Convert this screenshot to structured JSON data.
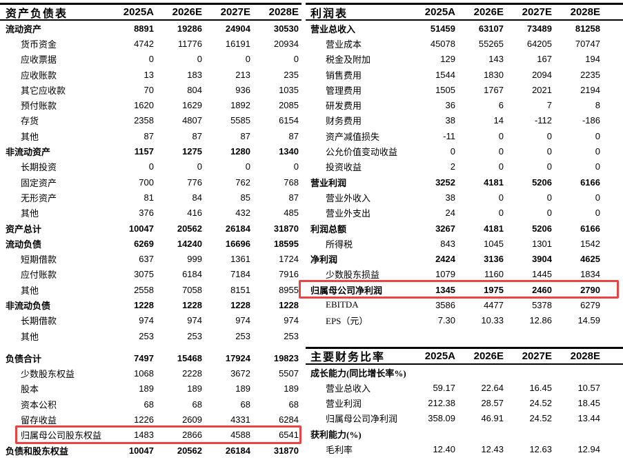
{
  "highlight_color": "#ea4343",
  "columns": [
    "2025A",
    "2026E",
    "2027E",
    "2028E"
  ],
  "balance_sheet": {
    "title": "资产负债表",
    "rows": [
      {
        "label": "流动资产",
        "style": "bold",
        "values": [
          "8891",
          "19286",
          "24904",
          "30530"
        ]
      },
      {
        "label": "货币资金",
        "style": "indent",
        "values": [
          "4742",
          "11776",
          "16191",
          "20934"
        ]
      },
      {
        "label": "应收票据",
        "style": "indent",
        "values": [
          "0",
          "0",
          "0",
          "0"
        ]
      },
      {
        "label": "应收账款",
        "style": "indent",
        "values": [
          "13",
          "183",
          "213",
          "235"
        ]
      },
      {
        "label": "其它应收款",
        "style": "indent",
        "values": [
          "70",
          "804",
          "936",
          "1035"
        ]
      },
      {
        "label": "预付账款",
        "style": "indent",
        "values": [
          "1620",
          "1629",
          "1892",
          "2085"
        ]
      },
      {
        "label": "存货",
        "style": "indent",
        "values": [
          "2358",
          "4807",
          "5585",
          "6154"
        ]
      },
      {
        "label": "其他",
        "style": "indent",
        "values": [
          "87",
          "87",
          "87",
          "87"
        ]
      },
      {
        "label": "非流动资产",
        "style": "bold",
        "values": [
          "1157",
          "1275",
          "1280",
          "1340"
        ]
      },
      {
        "label": "长期投资",
        "style": "indent",
        "values": [
          "0",
          "0",
          "0",
          "0"
        ]
      },
      {
        "label": "固定资产",
        "style": "indent",
        "values": [
          "700",
          "776",
          "762",
          "768"
        ]
      },
      {
        "label": "无形资产",
        "style": "indent",
        "values": [
          "81",
          "84",
          "85",
          "87"
        ]
      },
      {
        "label": "其他",
        "style": "indent",
        "values": [
          "376",
          "416",
          "432",
          "485"
        ]
      },
      {
        "label": "资产总计",
        "style": "bold",
        "values": [
          "10047",
          "20562",
          "26184",
          "31870"
        ]
      },
      {
        "label": "流动负债",
        "style": "bold",
        "values": [
          "6269",
          "14240",
          "16696",
          "18595"
        ]
      },
      {
        "label": "短期借款",
        "style": "indent",
        "values": [
          "637",
          "999",
          "1361",
          "1724"
        ]
      },
      {
        "label": "应付账款",
        "style": "indent",
        "values": [
          "3075",
          "6184",
          "7184",
          "7916"
        ]
      },
      {
        "label": "其他",
        "style": "indent",
        "values": [
          "2558",
          "7058",
          "8151",
          "8955"
        ]
      },
      {
        "label": "非流动负债",
        "style": "bold",
        "values": [
          "1228",
          "1228",
          "1228",
          "1228"
        ]
      },
      {
        "label": "长期借款",
        "style": "indent",
        "values": [
          "974",
          "974",
          "974",
          "974"
        ]
      },
      {
        "label": "其他",
        "style": "indent",
        "values": [
          "253",
          "253",
          "253",
          "253"
        ]
      },
      {
        "label": "负债合计",
        "style": "bold",
        "gap": true,
        "values": [
          "7497",
          "15468",
          "17924",
          "19823"
        ]
      },
      {
        "label": "少数股东权益",
        "style": "indent",
        "values": [
          "1068",
          "2228",
          "3672",
          "5507"
        ]
      },
      {
        "label": "股本",
        "style": "indent",
        "values": [
          "189",
          "189",
          "189",
          "189"
        ]
      },
      {
        "label": "资本公积",
        "style": "indent",
        "values": [
          "68",
          "68",
          "68",
          "68"
        ]
      },
      {
        "label": "留存收益",
        "style": "indent",
        "values": [
          "1226",
          "2609",
          "4331",
          "6284"
        ]
      },
      {
        "label": "归属母公司股东权益",
        "style": "indent",
        "highlight": true,
        "values": [
          "1483",
          "2866",
          "4588",
          "6541"
        ]
      },
      {
        "label": "负债和股东权益",
        "style": "bold",
        "values": [
          "10047",
          "20562",
          "26184",
          "31870"
        ]
      }
    ]
  },
  "income_statement": {
    "title": "利润表",
    "rows": [
      {
        "label": "营业总收入",
        "style": "bold",
        "values": [
          "51459",
          "63107",
          "73489",
          "81258"
        ]
      },
      {
        "label": "营业成本",
        "style": "indent",
        "values": [
          "45078",
          "55265",
          "64205",
          "70747"
        ]
      },
      {
        "label": "税金及附加",
        "style": "indent",
        "values": [
          "129",
          "143",
          "167",
          "194"
        ]
      },
      {
        "label": "销售费用",
        "style": "indent",
        "values": [
          "1544",
          "1830",
          "2094",
          "2235"
        ]
      },
      {
        "label": "管理费用",
        "style": "indent",
        "values": [
          "1505",
          "1767",
          "2021",
          "2194"
        ]
      },
      {
        "label": "研发费用",
        "style": "indent",
        "values": [
          "36",
          "6",
          "7",
          "8"
        ]
      },
      {
        "label": "财务费用",
        "style": "indent",
        "values": [
          "38",
          "14",
          "-112",
          "-186"
        ]
      },
      {
        "label": "资产减值损失",
        "style": "indent",
        "values": [
          "-11",
          "0",
          "0",
          "0"
        ]
      },
      {
        "label": "公允价值变动收益",
        "style": "indent",
        "values": [
          "0",
          "0",
          "0",
          "0"
        ]
      },
      {
        "label": "投资收益",
        "style": "indent",
        "values": [
          "2",
          "0",
          "0",
          "0"
        ]
      },
      {
        "label": "营业利润",
        "style": "bold",
        "values": [
          "3252",
          "4181",
          "5206",
          "6166"
        ]
      },
      {
        "label": "营业外收入",
        "style": "indent",
        "values": [
          "38",
          "0",
          "0",
          "0"
        ]
      },
      {
        "label": "营业外支出",
        "style": "indent",
        "values": [
          "24",
          "0",
          "0",
          "0"
        ]
      },
      {
        "label": "利润总额",
        "style": "bold",
        "values": [
          "3267",
          "4181",
          "5206",
          "6166"
        ]
      },
      {
        "label": "所得税",
        "style": "indent",
        "values": [
          "843",
          "1045",
          "1301",
          "1542"
        ]
      },
      {
        "label": "净利润",
        "style": "bold",
        "values": [
          "2424",
          "3136",
          "3904",
          "4625"
        ]
      },
      {
        "label": "少数股东损益",
        "style": "indent",
        "values": [
          "1079",
          "1160",
          "1445",
          "1834"
        ]
      },
      {
        "label": "归属母公司净利润",
        "style": "bold",
        "highlight": true,
        "values": [
          "1345",
          "1975",
          "2460",
          "2790"
        ]
      },
      {
        "label": "EBITDA",
        "style": "indent",
        "values": [
          "3586",
          "4477",
          "5378",
          "6279"
        ]
      },
      {
        "label": "EPS（元）",
        "style": "indent",
        "values": [
          "7.30",
          "10.33",
          "12.86",
          "14.59"
        ]
      }
    ]
  },
  "ratios": {
    "title": "主要财务比率",
    "rows": [
      {
        "label": "成长能力(同比增长率%)",
        "style": "bold",
        "values": [
          "",
          "",
          "",
          ""
        ]
      },
      {
        "label": "营业总收入",
        "style": "indent",
        "values": [
          "59.17",
          "22.64",
          "16.45",
          "10.57"
        ]
      },
      {
        "label": "营业利润",
        "style": "indent",
        "values": [
          "212.38",
          "28.57",
          "24.52",
          "18.45"
        ]
      },
      {
        "label": "归属母公司净利润",
        "style": "indent",
        "values": [
          "358.09",
          "46.91",
          "24.52",
          "13.44"
        ]
      },
      {
        "label": "获利能力(%)",
        "style": "bold",
        "values": [
          "",
          "",
          "",
          ""
        ]
      },
      {
        "label": "毛利率",
        "style": "indent",
        "values": [
          "12.40",
          "12.43",
          "12.63",
          "12.94"
        ]
      }
    ]
  }
}
